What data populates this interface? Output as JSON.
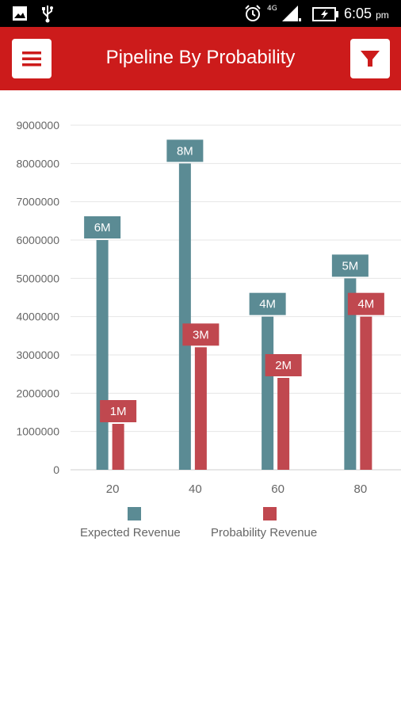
{
  "status_bar": {
    "time": "6:05",
    "ampm": "pm",
    "network": "4G",
    "icons": [
      "image-icon",
      "usb-icon",
      "alarm-icon",
      "signal-icon",
      "battery-charging-icon"
    ]
  },
  "app_bar": {
    "title": "Pipeline By Probability",
    "menu_icon": "menu-icon",
    "filter_icon": "filter-icon",
    "color": "#cc1b1b"
  },
  "chart_data": {
    "type": "bar",
    "categories": [
      "20",
      "40",
      "60",
      "80"
    ],
    "series": [
      {
        "name": "Expected Revenue",
        "color": "#5b8b94",
        "values": [
          6000000,
          8000000,
          4000000,
          5000000
        ],
        "labels": [
          "6M",
          "8M",
          "4M",
          "5M"
        ]
      },
      {
        "name": "Probability Revenue",
        "color": "#c0484f",
        "values": [
          1200000,
          3200000,
          2400000,
          4000000
        ],
        "labels": [
          "1M",
          "3M",
          "2M",
          "4M"
        ]
      }
    ],
    "ylim": [
      0,
      9000000
    ],
    "yticks": [
      "0",
      "1000000",
      "2000000",
      "3000000",
      "4000000",
      "5000000",
      "6000000",
      "7000000",
      "8000000",
      "9000000"
    ],
    "grid": true,
    "legend_position": "bottom"
  }
}
